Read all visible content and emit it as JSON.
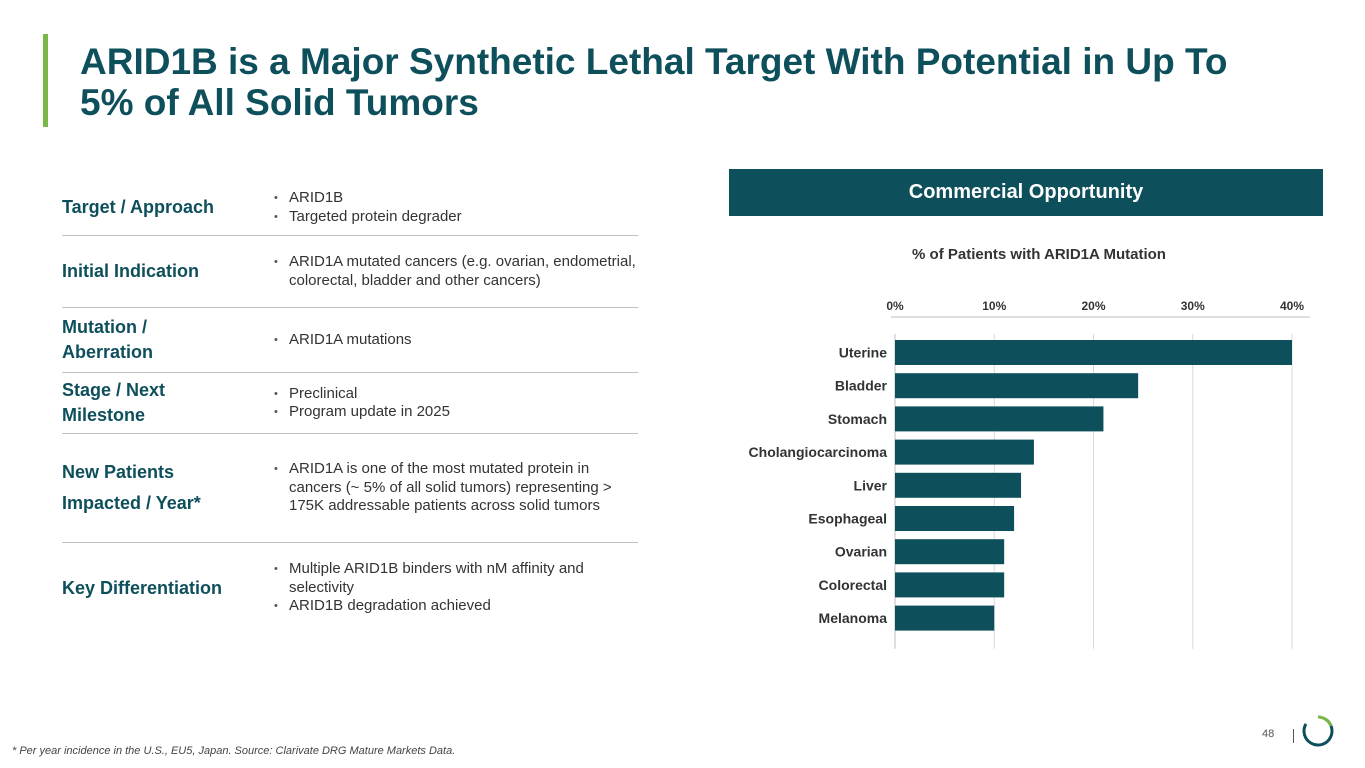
{
  "header": {
    "title": "ARID1B is a Major Synthetic Lethal Target With Potential in Up To 5% of All Solid Tumors"
  },
  "table": {
    "rows": [
      {
        "label": "Target / Approach",
        "items": [
          "ARID1B",
          "Targeted protein degrader"
        ]
      },
      {
        "label": "Initial Indication",
        "items": [
          "ARID1A mutated cancers (e.g. ovarian, endometrial, colorectal, bladder and other cancers)"
        ]
      },
      {
        "label": "Mutation / Aberration",
        "items": [
          "ARID1A mutations"
        ]
      },
      {
        "label": "Stage / Next Milestone",
        "items": [
          "Preclinical",
          "Program update in 2025"
        ]
      },
      {
        "label": "New Patients Impacted / Year*",
        "items": [
          "ARID1A is one of the most mutated protein in cancers (~ 5% of all solid tumors) representing > 175K addressable patients across solid tumors"
        ]
      },
      {
        "label": "Key Differentiation",
        "items": [
          "Multiple ARID1B binders with nM affinity and selectivity",
          "ARID1B degradation achieved"
        ]
      }
    ]
  },
  "panel": {
    "header": "Commercial Opportunity"
  },
  "chart_data": {
    "type": "bar",
    "orientation": "horizontal",
    "title": "% of Patients with ARID1A Mutation",
    "categories": [
      "Uterine",
      "Bladder",
      "Stomach",
      "Cholangiocarcinoma",
      "Liver",
      "Esophageal",
      "Ovarian",
      "Colorectal",
      "Melanoma"
    ],
    "values": [
      40,
      24.5,
      21,
      14,
      12.7,
      12,
      11,
      11,
      10
    ],
    "xlim": [
      0,
      40
    ],
    "xticks": [
      0,
      10,
      20,
      30,
      40
    ],
    "xtick_labels": [
      "0%",
      "10%",
      "20%",
      "30%",
      "40%"
    ],
    "axis_position": "top",
    "grid": true,
    "bar_color": "#0e4f5c"
  },
  "footer": {
    "footnote": "* Per year incidence in the U.S., EU5, Japan. Source: Clarivate DRG Mature Markets Data.",
    "page_number": "48"
  }
}
